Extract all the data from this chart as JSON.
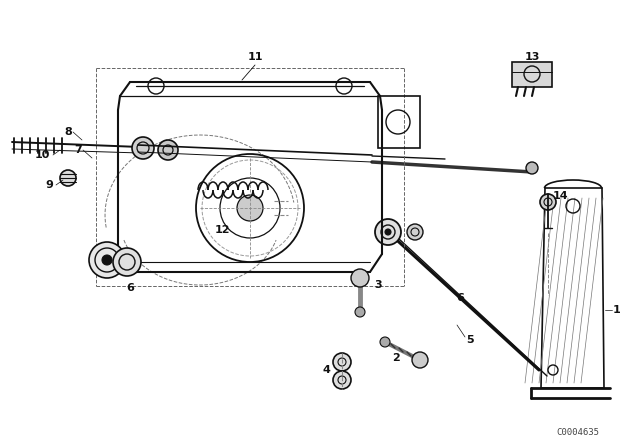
{
  "bg_color": "#ffffff",
  "line_color": "#111111",
  "part_code": "C0004635",
  "fig_width": 6.4,
  "fig_height": 4.48,
  "dpi": 100
}
